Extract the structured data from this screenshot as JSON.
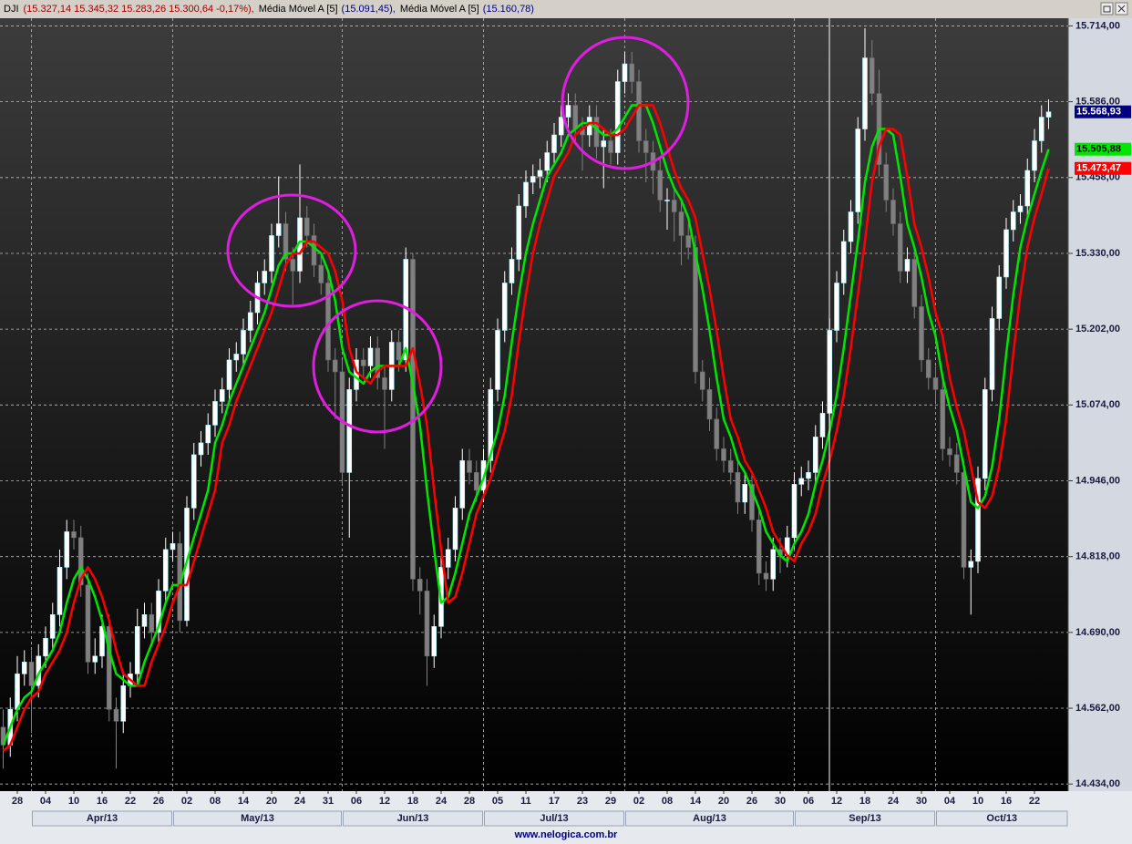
{
  "chart_data": {
    "type": "candlestick",
    "header": {
      "symbol": "DJI",
      "quote": "(15.327,14  15.345,32  15.283,26  15.300,64  -0,17%),"
    },
    "source": "www.nelogica.com.br",
    "categories": [
      null,
      null,
      "28",
      null,
      null,
      null,
      "04",
      null,
      null,
      null,
      "10",
      null,
      null,
      null,
      "16",
      null,
      null,
      null,
      "22",
      null,
      null,
      null,
      "26",
      null,
      null,
      null,
      "02",
      null,
      null,
      null,
      "08",
      null,
      null,
      null,
      "14",
      null,
      null,
      null,
      "20",
      null,
      null,
      null,
      "24",
      null,
      null,
      null,
      "31",
      null,
      null,
      null,
      "06",
      null,
      null,
      null,
      "12",
      null,
      null,
      null,
      "18",
      null,
      null,
      null,
      "24",
      null,
      null,
      null,
      "28",
      null,
      null,
      null,
      "05",
      null,
      null,
      null,
      "11",
      null,
      null,
      null,
      "17",
      null,
      null,
      null,
      "23",
      null,
      null,
      null,
      "29",
      null,
      null,
      null,
      "02",
      null,
      null,
      null,
      "08",
      null,
      null,
      null,
      "14",
      null,
      null,
      null,
      "20",
      null,
      null,
      null,
      "26",
      null,
      null,
      null,
      "30",
      null,
      null,
      null,
      "06",
      null,
      null,
      null,
      "12",
      null,
      null,
      null,
      "18",
      null,
      null,
      null,
      "24",
      null,
      null,
      null,
      "30",
      null,
      null,
      null,
      "04",
      null,
      null,
      null,
      "10",
      null,
      null,
      null,
      "16",
      null,
      null,
      null,
      "22",
      null,
      null
    ],
    "months": [
      "Apr/13",
      "May/13",
      "Jun/13",
      "Jul/13",
      "Aug/13",
      "Sep/13",
      "Oct/13"
    ],
    "open": [
      14530,
      14500,
      14560,
      14620,
      14640,
      14600,
      14650,
      14680,
      14720,
      14800,
      14860,
      14850,
      14770,
      14640,
      14650,
      14700,
      14560,
      14540,
      14600,
      14620,
      14700,
      14720,
      14690,
      14760,
      14830,
      14840,
      14710,
      14900,
      14990,
      15010,
      15040,
      15080,
      15100,
      15150,
      15160,
      15200,
      15230,
      15280,
      15300,
      15360,
      15380,
      15320,
      15300,
      15390,
      15360,
      15310,
      15280,
      15150,
      15130,
      14960,
      15100,
      15150,
      15140,
      15170,
      15120,
      15100,
      15180,
      15150,
      15320,
      14780,
      14760,
      14650,
      14700,
      14800,
      14830,
      14900,
      14980,
      14960,
      14930,
      14980,
      15100,
      15200,
      15280,
      15320,
      15410,
      15450,
      15460,
      15470,
      15500,
      15530,
      15560,
      15580,
      15540,
      15530,
      15560,
      15510,
      15520,
      15500,
      15620,
      15650,
      15620,
      15520,
      15500,
      15470,
      15420,
      15420,
      15400,
      15360,
      15340,
      15130,
      15100,
      15050,
      15000,
      14980,
      14960,
      14910,
      14940,
      14880,
      14790,
      14780,
      14830,
      14820,
      14850,
      14940,
      14950,
      14960,
      15020,
      15060,
      15200,
      15280,
      15350,
      15400,
      15540,
      15660,
      15600,
      15480,
      15420,
      15380,
      15300,
      15320,
      15240,
      15150,
      15120,
      15100,
      15000,
      14990,
      14960,
      14800,
      14810,
      14950,
      15100,
      15220,
      15290,
      15370,
      15400,
      15410,
      15470,
      15520,
      15560
    ],
    "high": [
      14560,
      14580,
      14650,
      14660,
      14660,
      14670,
      14700,
      14740,
      14830,
      14880,
      14880,
      14870,
      14790,
      14680,
      14720,
      14720,
      14580,
      14620,
      14640,
      14730,
      14740,
      14740,
      14780,
      14850,
      14860,
      14860,
      14920,
      15010,
      15030,
      15060,
      15100,
      15120,
      15170,
      15180,
      15220,
      15250,
      15300,
      15320,
      15380,
      15460,
      15400,
      15340,
      15480,
      15410,
      15380,
      15330,
      15300,
      15170,
      15150,
      15120,
      15170,
      15170,
      15190,
      15190,
      15140,
      15200,
      15200,
      15340,
      15330,
      14800,
      14780,
      14720,
      14820,
      14850,
      14920,
      15000,
      15000,
      14980,
      15000,
      15120,
      15220,
      15300,
      15340,
      15430,
      15470,
      15480,
      15490,
      15520,
      15550,
      15580,
      15600,
      15600,
      15560,
      15580,
      15580,
      15540,
      15540,
      15640,
      15670,
      15670,
      15640,
      15540,
      15520,
      15490,
      15440,
      15440,
      15420,
      15380,
      15360,
      15150,
      15120,
      15070,
      15020,
      15000,
      14980,
      14960,
      14960,
      14900,
      14810,
      14850,
      14850,
      14870,
      14960,
      14970,
      14980,
      15040,
      15080,
      15220,
      15300,
      15370,
      15420,
      15560,
      15710,
      15690,
      15640,
      15500,
      15440,
      15400,
      15340,
      15340,
      15260,
      15170,
      15140,
      15120,
      15020,
      15010,
      14980,
      14830,
      14970,
      15120,
      15240,
      15310,
      15390,
      15420,
      15430,
      15490,
      15540,
      15580,
      15590
    ],
    "low": [
      14460,
      14480,
      14540,
      14600,
      14520,
      14580,
      14630,
      14660,
      14700,
      14780,
      14830,
      14750,
      14620,
      14620,
      14630,
      14540,
      14460,
      14520,
      14580,
      14600,
      14680,
      14670,
      14670,
      14740,
      14810,
      14690,
      14700,
      14880,
      14970,
      14990,
      15020,
      15060,
      15080,
      15130,
      15140,
      15180,
      15210,
      15260,
      15280,
      15340,
      15300,
      15240,
      15280,
      15340,
      15290,
      15260,
      15130,
      15050,
      14940,
      14850,
      15080,
      15120,
      15120,
      15100,
      15000,
      15080,
      15130,
      15130,
      14760,
      14720,
      14600,
      14630,
      14680,
      14780,
      14810,
      14880,
      14940,
      14910,
      14910,
      14960,
      15080,
      15180,
      15260,
      15300,
      15390,
      15430,
      15440,
      15450,
      15480,
      15510,
      15540,
      15520,
      15470,
      15510,
      15490,
      15440,
      15480,
      15480,
      15600,
      15600,
      15500,
      15450,
      15430,
      15400,
      15370,
      15350,
      15310,
      15320,
      15110,
      15080,
      15030,
      14980,
      14960,
      14940,
      14890,
      14890,
      14860,
      14770,
      14760,
      14760,
      14790,
      14800,
      14830,
      14920,
      14930,
      14940,
      15000,
      15040,
      15180,
      15260,
      15330,
      15380,
      15520,
      15580,
      15460,
      15400,
      15360,
      15280,
      15280,
      15220,
      15130,
      15100,
      15080,
      14980,
      14970,
      14940,
      14780,
      14720,
      14790,
      14930,
      15080,
      15200,
      15270,
      15350,
      15380,
      15390,
      15450,
      15500,
      15540
    ],
    "close": [
      14500,
      14560,
      14620,
      14640,
      14600,
      14650,
      14680,
      14720,
      14800,
      14860,
      14850,
      14770,
      14640,
      14650,
      14700,
      14560,
      14540,
      14600,
      14620,
      14700,
      14720,
      14690,
      14760,
      14830,
      14840,
      14710,
      14900,
      14990,
      15010,
      15040,
      15080,
      15100,
      15150,
      15160,
      15200,
      15230,
      15280,
      15300,
      15360,
      15380,
      15320,
      15300,
      15390,
      15360,
      15310,
      15280,
      15150,
      15130,
      14960,
      15100,
      15150,
      15140,
      15170,
      15120,
      15100,
      15180,
      15150,
      15320,
      14780,
      14760,
      14650,
      14700,
      14800,
      14830,
      14900,
      14980,
      14960,
      14930,
      14980,
      15100,
      15200,
      15280,
      15320,
      15410,
      15450,
      15460,
      15470,
      15500,
      15530,
      15560,
      15580,
      15540,
      15530,
      15560,
      15510,
      15520,
      15500,
      15620,
      15650,
      15620,
      15520,
      15500,
      15470,
      15420,
      15420,
      15400,
      15360,
      15340,
      15130,
      15100,
      15050,
      15000,
      14980,
      14960,
      14910,
      14940,
      14880,
      14790,
      14780,
      14830,
      14820,
      14850,
      14940,
      14950,
      14960,
      15020,
      15060,
      15200,
      15280,
      15350,
      15400,
      15540,
      15660,
      15600,
      15480,
      15420,
      15380,
      15300,
      15320,
      15240,
      15150,
      15120,
      15100,
      15000,
      14990,
      14960,
      14800,
      14810,
      14950,
      15100,
      15220,
      15290,
      15370,
      15400,
      15410,
      15470,
      15520,
      15560,
      15568.93
    ],
    "close_label": "15.568,93",
    "up_color": "#ffffff",
    "down_color": "#808080",
    "close_tag_color": "#000080",
    "lines": [
      {
        "name": "Média Móvel A [5]",
        "header_value": "(15.091,45),",
        "color": "#00e600",
        "last_label": "15.505,88",
        "values": [
          14500,
          14530,
          14560,
          14580,
          14590,
          14620,
          14640,
          14660,
          14690,
          14740,
          14780,
          14800,
          14780,
          14750,
          14710,
          14660,
          14620,
          14610,
          14600,
          14600,
          14640,
          14670,
          14700,
          14740,
          14770,
          14770,
          14810,
          14850,
          14890,
          14930,
          15010,
          15040,
          15080,
          15110,
          15140,
          15170,
          15200,
          15230,
          15270,
          15310,
          15330,
          15330,
          15350,
          15350,
          15340,
          15330,
          15300,
          15250,
          15170,
          15130,
          15120,
          15110,
          15130,
          15140,
          15140,
          15140,
          15140,
          15170,
          15110,
          15040,
          14930,
          14830,
          14740,
          14750,
          14790,
          14840,
          14890,
          14920,
          14950,
          14990,
          15030,
          15090,
          15180,
          15260,
          15330,
          15380,
          15420,
          15460,
          15480,
          15500,
          15530,
          15540,
          15550,
          15550,
          15540,
          15530,
          15530,
          15540,
          15560,
          15580,
          15580,
          15580,
          15550,
          15510,
          15470,
          15440,
          15420,
          15390,
          15330,
          15270,
          15200,
          15120,
          15050,
          15020,
          14980,
          14960,
          14930,
          14900,
          14860,
          14840,
          14820,
          14810,
          14840,
          14860,
          14890,
          14940,
          14980,
          15030,
          15090,
          15170,
          15260,
          15350,
          15450,
          15510,
          15540,
          15540,
          15530,
          15460,
          15380,
          15340,
          15290,
          15230,
          15190,
          15120,
          15070,
          15030,
          14970,
          14910,
          14900,
          14920,
          14970,
          15050,
          15160,
          15260,
          15340,
          15390,
          15430,
          15470,
          15505.88
        ]
      },
      {
        "name": "Média Móvel A [5]",
        "header_value": "(15.160,78)",
        "color": "#ff0000",
        "last_label": "15.473,47",
        "values": [
          14490,
          14500,
          14530,
          14560,
          14580,
          14590,
          14620,
          14640,
          14660,
          14690,
          14740,
          14780,
          14800,
          14780,
          14750,
          14710,
          14660,
          14620,
          14610,
          14600,
          14600,
          14640,
          14670,
          14700,
          14740,
          14770,
          14770,
          14810,
          14850,
          14890,
          14930,
          15010,
          15040,
          15080,
          15110,
          15140,
          15170,
          15200,
          15230,
          15270,
          15310,
          15330,
          15330,
          15350,
          15350,
          15340,
          15330,
          15300,
          15250,
          15170,
          15130,
          15120,
          15110,
          15130,
          15140,
          15140,
          15140,
          15140,
          15170,
          15110,
          15040,
          14930,
          14830,
          14740,
          14750,
          14790,
          14840,
          14890,
          14920,
          14950,
          14990,
          15030,
          15090,
          15180,
          15260,
          15330,
          15380,
          15420,
          15460,
          15480,
          15500,
          15530,
          15540,
          15550,
          15550,
          15540,
          15530,
          15530,
          15540,
          15560,
          15580,
          15580,
          15580,
          15550,
          15510,
          15470,
          15440,
          15420,
          15390,
          15330,
          15270,
          15200,
          15120,
          15050,
          15020,
          14980,
          14960,
          14930,
          14900,
          14860,
          14840,
          14820,
          14810,
          14840,
          14860,
          14890,
          14940,
          14980,
          15030,
          15090,
          15170,
          15260,
          15350,
          15450,
          15510,
          15540,
          15540,
          15530,
          15460,
          15380,
          15340,
          15290,
          15230,
          15190,
          15120,
          15070,
          15030,
          14970,
          14910,
          14900,
          14920,
          14970,
          15050,
          15160,
          15260,
          15340,
          15390,
          15430,
          15473.47
        ]
      }
    ],
    "ylim": [
      14422,
      15727
    ],
    "yticks": [
      {
        "value": 14434,
        "label": "14.434,00"
      },
      {
        "value": 14562,
        "label": "14.562,00"
      },
      {
        "value": 14690,
        "label": "14.690,00"
      },
      {
        "value": 14818,
        "label": "14.818,00"
      },
      {
        "value": 14946,
        "label": "14.946,00"
      },
      {
        "value": 15074,
        "label": "15.074,00"
      },
      {
        "value": 15202,
        "label": "15.202,00"
      },
      {
        "value": 15330,
        "label": "15.330,00"
      },
      {
        "value": 15458,
        "label": "15.458,00"
      },
      {
        "value": 15586,
        "label": "15.586,00"
      },
      {
        "value": 15714,
        "label": "15.714,00"
      }
    ],
    "grid": true
  }
}
